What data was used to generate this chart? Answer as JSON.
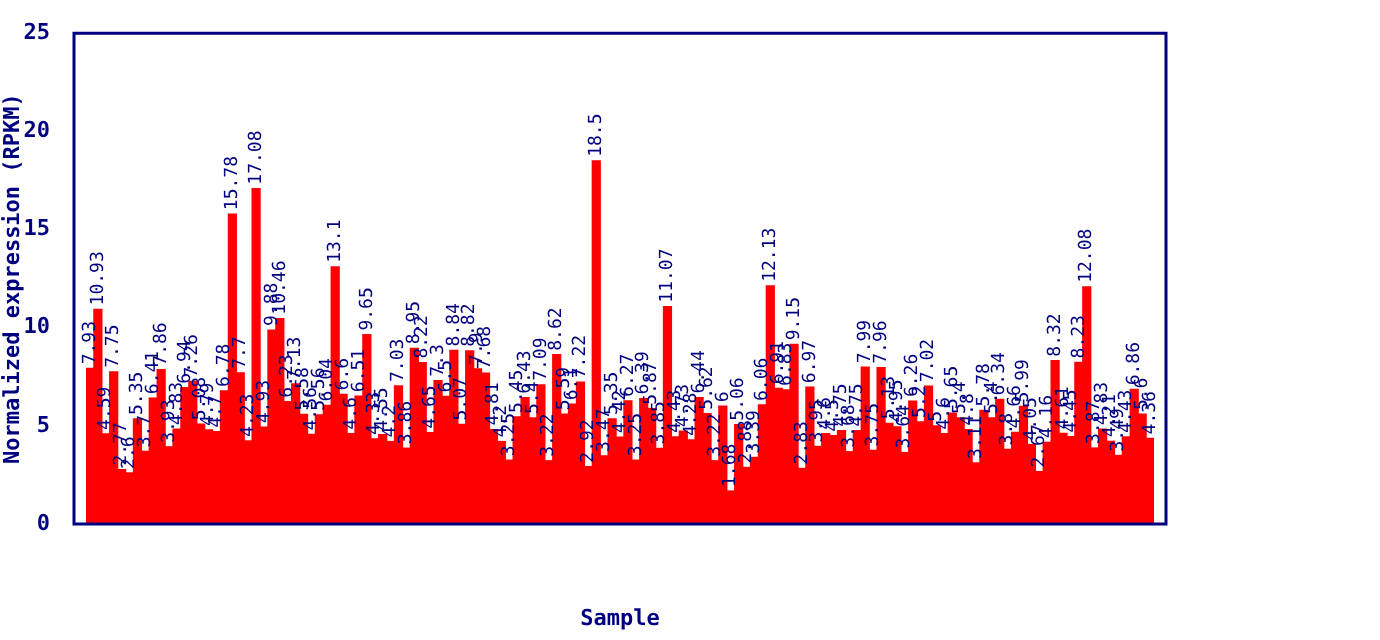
{
  "chart_data": {
    "type": "bar",
    "xlabel": "Sample",
    "ylabel": "Normalized expression (RPKM)",
    "categories": [
      null,
      null,
      null,
      null,
      null,
      null,
      null,
      null,
      null,
      null,
      null,
      null,
      null,
      null,
      null,
      null,
      null,
      null,
      null,
      null,
      null,
      null,
      null,
      null,
      null,
      null,
      null,
      null,
      null,
      null,
      null,
      null,
      null,
      null,
      null,
      null,
      null,
      null,
      null,
      null,
      null,
      null,
      null,
      null,
      null,
      null,
      null,
      null,
      null,
      null,
      null,
      null,
      null,
      null,
      null,
      null,
      null,
      null,
      null,
      null,
      null,
      null,
      null,
      null,
      null,
      null,
      null,
      null,
      null,
      null,
      null,
      null,
      null,
      null,
      null,
      null,
      null,
      null,
      null,
      null,
      null,
      null,
      null,
      null,
      null,
      null,
      null,
      null,
      null,
      null,
      null,
      null,
      null,
      null,
      null,
      null,
      null,
      null,
      null,
      null,
      null,
      null,
      null,
      null,
      null,
      null,
      null,
      null,
      null,
      null,
      null,
      null,
      null,
      null,
      null,
      null,
      null,
      null,
      null,
      null,
      null,
      null,
      null,
      null,
      null,
      null,
      null,
      null,
      null,
      null,
      null,
      null,
      null,
      null,
      null
    ],
    "values": [
      7.93,
      10.93,
      4.59,
      7.75,
      2.77,
      2.6,
      5.35,
      3.7,
      6.41,
      7.86,
      3.93,
      4.83,
      6.94,
      7.26,
      5.08,
      4.79,
      4.7,
      6.78,
      15.78,
      7.7,
      4.23,
      17.08,
      4.93,
      9.88,
      10.46,
      6.23,
      7.13,
      5.58,
      4.56,
      5.56,
      6.04,
      13.1,
      6.6,
      4.6,
      6.51,
      9.65,
      4.33,
      4.55,
      4.2,
      7.03,
      3.86,
      8.95,
      8.22,
      4.65,
      7.3,
      6.5,
      8.84,
      5.07,
      8.82,
      7.9,
      7.68,
      4.81,
      4.2,
      3.25,
      5.45,
      6.43,
      5.4,
      7.09,
      3.22,
      8.62,
      5.59,
      6.1,
      7.22,
      2.92,
      18.5,
      3.47,
      5.35,
      4.42,
      6.27,
      3.25,
      6.39,
      5.87,
      3.85,
      11.07,
      4.43,
      4.73,
      4.28,
      6.44,
      5.62,
      3.22,
      6,
      1.68,
      5.06,
      2.88,
      3.39,
      6.06,
      12.13,
      6.91,
      6.83,
      9.15,
      2.83,
      6.97,
      3.95,
      4.6,
      4.5,
      4.75,
      3.68,
      4.75,
      7.99,
      3.75,
      7.96,
      5.13,
      4.95,
      3.64,
      6.26,
      5.2,
      7.02,
      5,
      4.6,
      5.65,
      5.4,
      4.8,
      3.11,
      5.78,
      5.4,
      6.34,
      3.8,
      4.66,
      5.99,
      4.05,
      2.67,
      4.16,
      8.32,
      4.61,
      4.45,
      8.23,
      12.08,
      3.87,
      4.83,
      4.21,
      3.49,
      4.43,
      6.86,
      5.6,
      4.36
    ],
    "color": "#ff0000",
    "ylim": [
      0,
      25
    ],
    "yticks": [
      0,
      5,
      10,
      15,
      20,
      25
    ],
    "grid": false,
    "data_labels": true,
    "tick_labels": "y"
  }
}
